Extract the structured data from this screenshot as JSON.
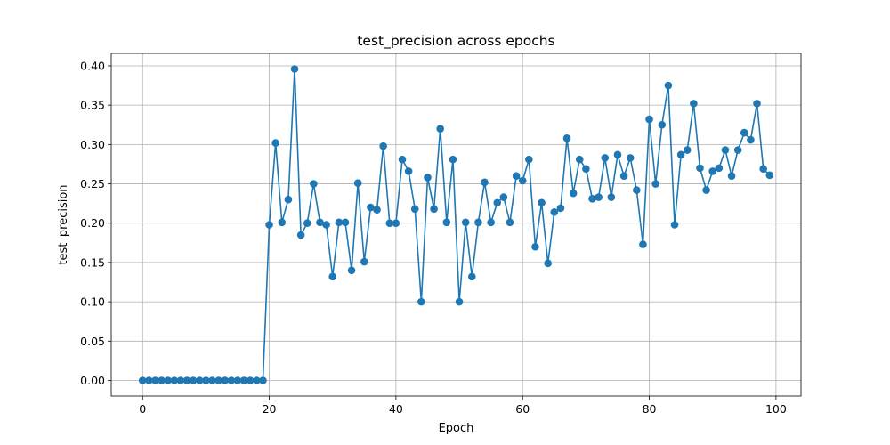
{
  "chart_data": {
    "type": "line",
    "title": "test_precision across epochs",
    "xlabel": "Epoch",
    "ylabel": "test_precision",
    "xlim": [
      -4.95,
      103.95
    ],
    "ylim": [
      -0.0198,
      0.4158
    ],
    "xticks": [
      0,
      20,
      40,
      60,
      80,
      100
    ],
    "yticks": [
      0.0,
      0.05,
      0.1,
      0.15,
      0.2,
      0.25,
      0.3,
      0.35,
      0.4
    ],
    "ytick_labels": [
      "0.00",
      "0.05",
      "0.10",
      "0.15",
      "0.20",
      "0.25",
      "0.30",
      "0.35",
      "0.40"
    ],
    "grid": true,
    "color": "#1f77b4",
    "marker": "circle",
    "series": [
      {
        "x": [
          0,
          1,
          2,
          3,
          4,
          5,
          6,
          7,
          8,
          9,
          10,
          11,
          12,
          13,
          14,
          15,
          16,
          17,
          18,
          19,
          20,
          21,
          22,
          23,
          24,
          25,
          26,
          27,
          28,
          29,
          30,
          31,
          32,
          33,
          34,
          35,
          36,
          37,
          38,
          39,
          40,
          41,
          42,
          43,
          44,
          45,
          46,
          47,
          48,
          49,
          50,
          51,
          52,
          53,
          54,
          55,
          56,
          57,
          58,
          59,
          60,
          61,
          62,
          63,
          64,
          65,
          66,
          67,
          68,
          69,
          70,
          71,
          72,
          73,
          74,
          75,
          76,
          77,
          78,
          79,
          80,
          81,
          82,
          83,
          84,
          85,
          86,
          87,
          88,
          89,
          90,
          91,
          92,
          93,
          94,
          95,
          96,
          97,
          98,
          99
        ],
        "values": [
          0.0,
          0.0,
          0.0,
          0.0,
          0.0,
          0.0,
          0.0,
          0.0,
          0.0,
          0.0,
          0.0,
          0.0,
          0.0,
          0.0,
          0.0,
          0.0,
          0.0,
          0.0,
          0.0,
          0.0,
          0.198,
          0.302,
          0.201,
          0.23,
          0.396,
          0.185,
          0.2,
          0.25,
          0.201,
          0.198,
          0.132,
          0.201,
          0.201,
          0.14,
          0.251,
          0.151,
          0.22,
          0.217,
          0.298,
          0.2,
          0.2,
          0.281,
          0.266,
          0.218,
          0.1,
          0.258,
          0.218,
          0.32,
          0.201,
          0.281,
          0.1,
          0.201,
          0.132,
          0.201,
          0.252,
          0.201,
          0.226,
          0.233,
          0.201,
          0.26,
          0.254,
          0.281,
          0.17,
          0.226,
          0.149,
          0.214,
          0.219,
          0.308,
          0.238,
          0.281,
          0.269,
          0.231,
          0.233,
          0.283,
          0.233,
          0.287,
          0.26,
          0.283,
          0.242,
          0.173,
          0.332,
          0.25,
          0.325,
          0.375,
          0.198,
          0.287,
          0.293,
          0.352,
          0.27,
          0.242,
          0.266,
          0.27,
          0.293,
          0.26,
          0.293,
          0.315,
          0.306,
          0.352,
          0.269,
          0.261
        ]
      }
    ]
  }
}
